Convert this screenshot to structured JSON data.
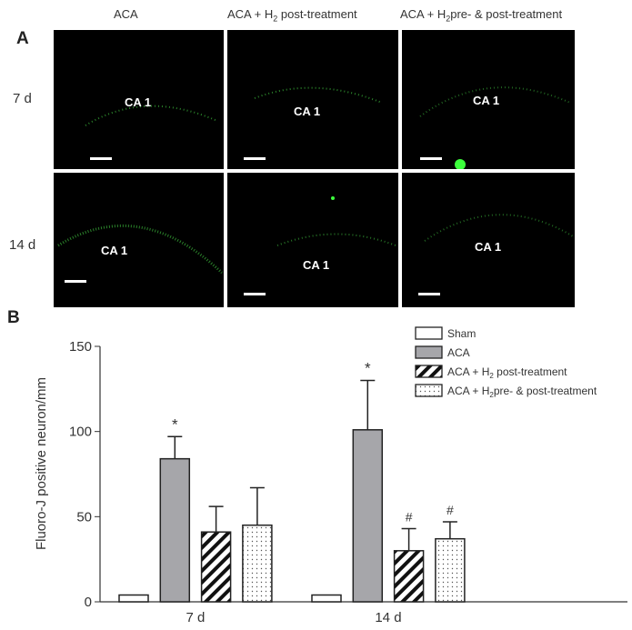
{
  "panel_a": {
    "letter": "A",
    "columns": [
      "ACA",
      "ACA + H",
      "post-treatment",
      "ACA + H",
      "pre- & post-treatment"
    ],
    "subscript": "2",
    "rows": [
      "7 d",
      "14 d"
    ],
    "region_label": "CA 1"
  },
  "panel_b": {
    "letter": "B"
  },
  "chart_data": {
    "type": "bar",
    "ylabel": "Fluoro-J positive neuron/mm",
    "ylim": [
      0,
      150
    ],
    "yticks": [
      0,
      50,
      100,
      150
    ],
    "categories": [
      "7 d",
      "14 d"
    ],
    "series": [
      {
        "name": "Sham",
        "values": [
          4,
          4
        ],
        "errors": [
          0,
          0
        ],
        "fill": "#ffffff",
        "pattern": "none",
        "marks": [
          "",
          ""
        ]
      },
      {
        "name": "ACA",
        "values": [
          84,
          101
        ],
        "errors": [
          13,
          29
        ],
        "fill": "#a6a6aa",
        "pattern": "none",
        "marks": [
          "*",
          "*"
        ]
      },
      {
        "name": "ACA + H2 post-treatment",
        "values": [
          41,
          30
        ],
        "errors": [
          15,
          13
        ],
        "fill": "#ffffff",
        "pattern": "hatch",
        "marks": [
          "",
          "#"
        ]
      },
      {
        "name": "ACA + H2 pre- & post-treatment",
        "values": [
          45,
          37
        ],
        "errors": [
          22,
          10
        ],
        "fill": "#ffffff",
        "pattern": "dots",
        "marks": [
          "",
          "#"
        ]
      }
    ],
    "legend": {
      "placement": "top-right",
      "entries": [
        {
          "pre": "Sham",
          "sub": "",
          "post": ""
        },
        {
          "pre": "ACA",
          "sub": "",
          "post": ""
        },
        {
          "pre": "ACA + H",
          "sub": "2",
          "post": " post-treatment"
        },
        {
          "pre": "ACA + H",
          "sub": "2",
          "post": "pre- & post-treatment"
        }
      ]
    }
  }
}
